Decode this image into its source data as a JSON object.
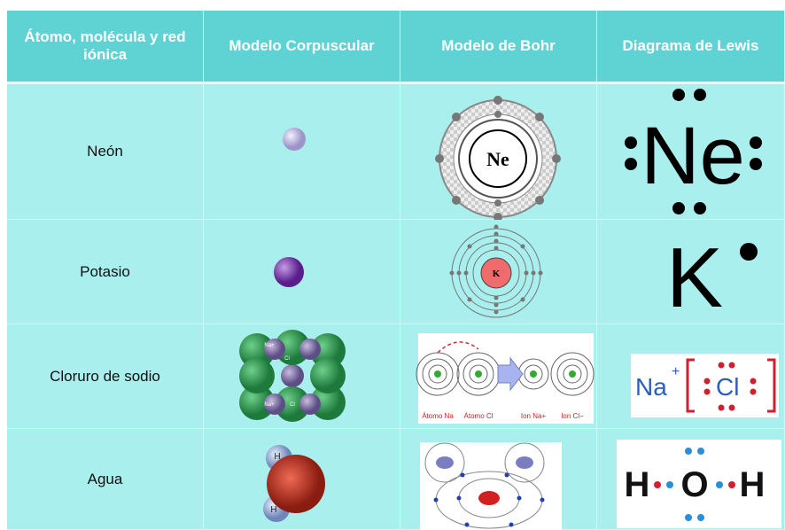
{
  "table": {
    "header": [
      "Átomo, molécula y red iónica",
      "Modelo Corpuscular",
      "Modelo de Bohr",
      "Diagrama de Lewis"
    ],
    "rows": [
      {
        "name": "Neón",
        "bohr": "Ne",
        "lewis": "Ne"
      },
      {
        "name": "Potasio",
        "bohr": "K",
        "lewis": "K"
      },
      {
        "name": "Cloruro de sodio",
        "corpuscular": [
          "Na+",
          "Cl",
          "Na+",
          "Cl"
        ],
        "bohr": [
          "Átomo Na",
          "Átomo Cl",
          "Ion Na+",
          "Ion Cl−"
        ],
        "lewis": [
          "Na",
          "+",
          "Cl"
        ]
      },
      {
        "name": "Agua",
        "corpuscular": [
          "H",
          "H"
        ],
        "lewis": [
          "H",
          "O",
          "H"
        ]
      }
    ]
  }
}
